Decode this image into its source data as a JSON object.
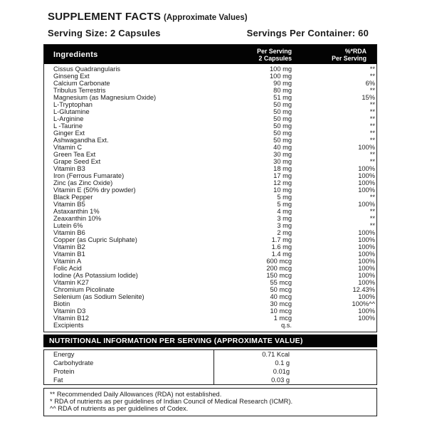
{
  "colors": {
    "bar_background": "#030303",
    "bar_text": "#ffffff",
    "text": "#1b1b1b",
    "border": "#1b1b1b",
    "page_background": "#ffffff"
  },
  "header": {
    "title": "SUPPLEMENT FACTS",
    "title_suffix": "(Approximate Values)",
    "serving_size": "Serving Size: 2 Capsules",
    "servings_per_container": "Servings Per Container: 60"
  },
  "ingredients_table": {
    "columns": {
      "ingredients": "Ingredients",
      "per_serving_line1": "Per Serving",
      "per_serving_line2": "2 Capsules",
      "rda_line1": "%*RDA",
      "rda_line2": "Per Serving"
    },
    "rows": [
      {
        "name": "Cissus Quadrangularis",
        "amount": "100 mg",
        "rda": "**"
      },
      {
        "name": "Ginseng Ext",
        "amount": "100 mg",
        "rda": "**"
      },
      {
        "name": "Calcium Carbonate",
        "amount": "90 mg",
        "rda": "6%"
      },
      {
        "name": "Tribulus Terrestris",
        "amount": "80 mg",
        "rda": "**"
      },
      {
        "name": "Magnesium (as Magnesium Oxide)",
        "amount": "51 mg",
        "rda": "15%"
      },
      {
        "name": "L-Tryptophan",
        "amount": "50 mg",
        "rda": "**"
      },
      {
        "name": "L-Glutamine",
        "amount": "50 mg",
        "rda": "**"
      },
      {
        "name": "L-Arginine",
        "amount": "50 mg",
        "rda": "**"
      },
      {
        "name": "L -Taurine",
        "amount": "50 mg",
        "rda": "**"
      },
      {
        "name": "Ginger Ext",
        "amount": "50 mg",
        "rda": "**"
      },
      {
        "name": "Ashwagandha Ext.",
        "amount": "50 mg",
        "rda": "**"
      },
      {
        "name": "Vitamin C",
        "amount": "40 mg",
        "rda": "100%"
      },
      {
        "name": "Green Tea Ext",
        "amount": "30 mg",
        "rda": "**"
      },
      {
        "name": "Grape Seed Ext",
        "amount": "30 mg",
        "rda": "**"
      },
      {
        "name": "Vitamin B3",
        "amount": "18 mg",
        "rda": "100%"
      },
      {
        "name": "Iron (Ferrous Fumarate)",
        "amount": "17 mg",
        "rda": "100%"
      },
      {
        "name": "Zinc (as Zinc Oxide)",
        "amount": "12 mg",
        "rda": "100%"
      },
      {
        "name": "Vitamin E (50% dry powder)",
        "amount": "10 mg",
        "rda": "100%"
      },
      {
        "name": "Black Pepper",
        "amount": "5 mg",
        "rda": "**"
      },
      {
        "name": "Vitamin B5",
        "amount": "5 mg",
        "rda": "100%"
      },
      {
        "name": "Astaxanthin 1%",
        "amount": "4 mg",
        "rda": "**"
      },
      {
        "name": "Zeaxanthin 10%",
        "amount": "3 mg",
        "rda": "**"
      },
      {
        "name": "Lutein 6%",
        "amount": "3 mg",
        "rda": "**"
      },
      {
        "name": "Vitamin B6",
        "amount": "2 mg",
        "rda": "100%"
      },
      {
        "name": "Copper (as Cupric Sulphate)",
        "amount": "1.7 mg",
        "rda": "100%"
      },
      {
        "name": "Vitamin B2",
        "amount": "1.6 mg",
        "rda": "100%"
      },
      {
        "name": "Vitamin B1",
        "amount": "1.4 mg",
        "rda": "100%"
      },
      {
        "name": "Vitamin A",
        "amount": "600 mcg",
        "rda": "100%"
      },
      {
        "name": "Folic Acid",
        "amount": "200 mcg",
        "rda": "100%"
      },
      {
        "name": "Iodine (As Potassium Iodide)",
        "amount": "150 mcg",
        "rda": "100%"
      },
      {
        "name": "Vitamin K27",
        "amount": "55 mcg",
        "rda": "100%"
      },
      {
        "name": "Chromium Picolinate",
        "amount": "50 mcg",
        "rda": "12.43%"
      },
      {
        "name": "Selenium (as Sodium Selenite)",
        "amount": "40 mcg",
        "rda": "100%"
      },
      {
        "name": "Biotin",
        "amount": "30 mcg",
        "rda": "100%^^"
      },
      {
        "name": "Vitamin D3",
        "amount": "10 mcg",
        "rda": "100%"
      },
      {
        "name": "Vitamin B12",
        "amount": "1 mcg",
        "rda": "100%"
      },
      {
        "name": "Excipients",
        "amount": "q.s.",
        "rda": ""
      }
    ]
  },
  "nutrition_table": {
    "title": "NUTRITIONAL INFORMATION PER SERVING (APPROXIMATE VALUE)",
    "rows": [
      {
        "name": "Energy",
        "value": "0.71 Kcal"
      },
      {
        "name": "Carbohydrate",
        "value": "0.1 g"
      },
      {
        "name": "Protein",
        "value": "0.01g"
      },
      {
        "name": "Fat",
        "value": "0.03 g"
      }
    ]
  },
  "footnotes": [
    "** Recommended Daily Allowances (RDA) not established.",
    "* RDA of nutrients as per guidelines of Indian Council of Medical Research (ICMR).",
    "^^ RDA of nutrients as per guidelines of Codex."
  ]
}
